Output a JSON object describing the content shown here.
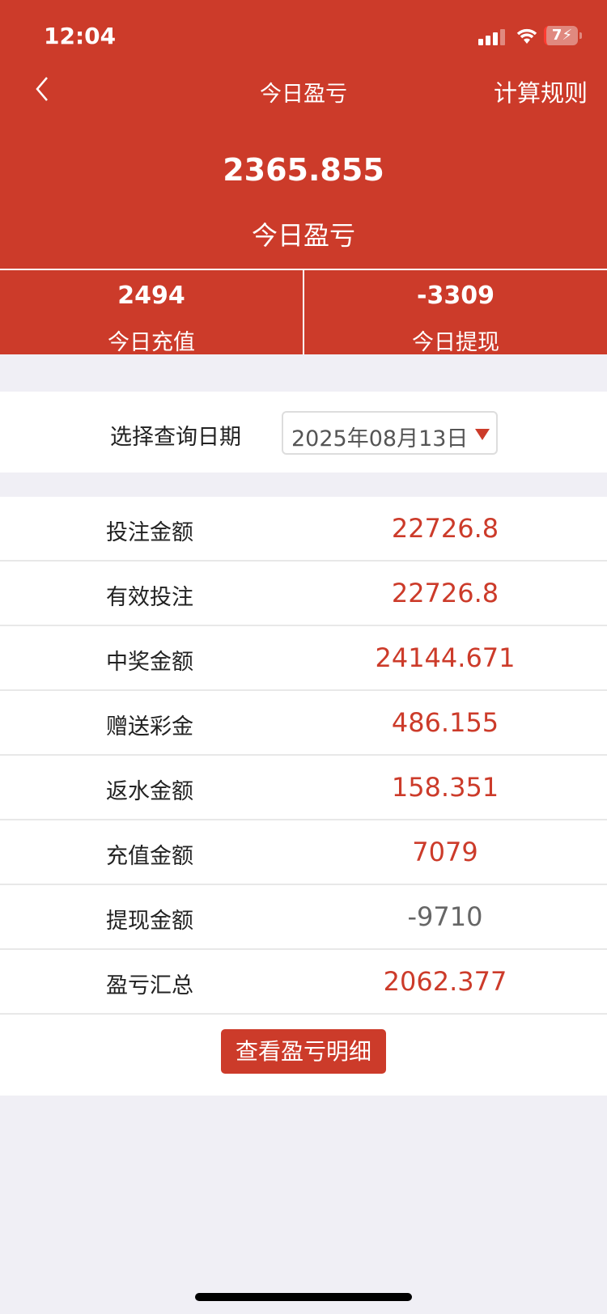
{
  "status": {
    "time": "12:04",
    "battery": "7"
  },
  "nav": {
    "title": "今日盈亏",
    "rules": "计算规则"
  },
  "summary": {
    "value": "2365.855",
    "label": "今日盈亏"
  },
  "stats": [
    {
      "value": "2494",
      "label": "今日充值"
    },
    {
      "value": "-3309",
      "label": "今日提现"
    }
  ],
  "date": {
    "label": "选择查询日期",
    "value": "2025年08月13日"
  },
  "rows": [
    {
      "label": "投注金额",
      "value": "22726.8"
    },
    {
      "label": "有效投注",
      "value": "22726.8"
    },
    {
      "label": "中奖金额",
      "value": "24144.671"
    },
    {
      "label": "赠送彩金",
      "value": "486.155"
    },
    {
      "label": "返水金额",
      "value": "158.351"
    },
    {
      "label": "充值金额",
      "value": "7079"
    },
    {
      "label": "提现金额",
      "value": "-9710"
    },
    {
      "label": "盈亏汇总",
      "value": "2062.377"
    }
  ],
  "detail_button": "查看盈亏明细",
  "colors": {
    "accent": "#cc3b2a",
    "background": "#f0eff5"
  }
}
